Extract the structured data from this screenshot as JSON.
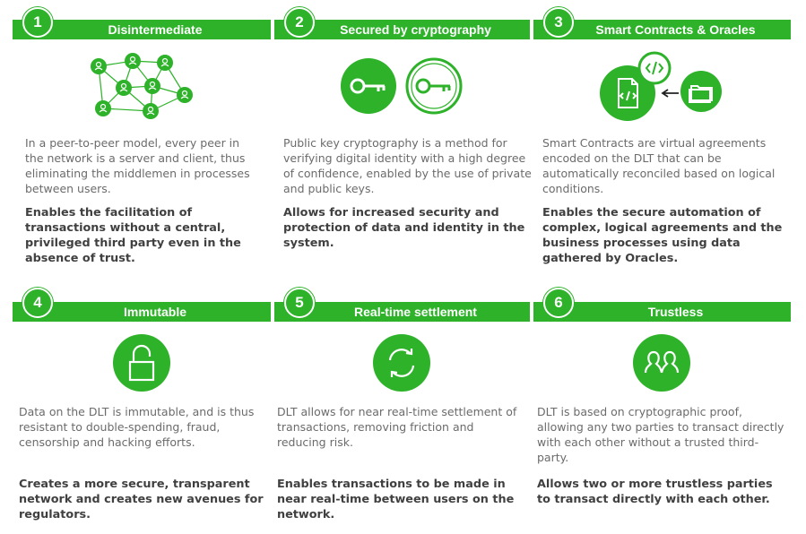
{
  "cards": [
    {
      "number": "1",
      "title": "Disintermediate",
      "description": "In a peer-to-peer model, every peer in the network is a server and client, thus eliminating the middlemen in processes between users.",
      "highlight": "Enables the facilitation of transactions without a central, privileged third party even in the absence of trust.",
      "icon": "network-nodes-icon"
    },
    {
      "number": "2",
      "title": "Secured by cryptography",
      "description": "Public key cryptography is a method for verifying digital identity with a high degree of confidence, enabled by the use of private and public keys.",
      "highlight": "Allows for increased security and protection of data and identity in the system.",
      "icon": "key-icon"
    },
    {
      "number": "3",
      "title": "Smart Contracts & Oracles",
      "description": "Smart Contracts are virtual agreements encoded on the DLT that can be automatically reconciled based on logical conditions.",
      "highlight": "Enables the secure automation of complex, logical agreements and the business processes using data gathered by Oracles.",
      "icon": "smart-contract-icon"
    },
    {
      "number": "4",
      "title": "Immutable",
      "description": "Data on the DLT is immutable, and is thus resistant to double-spending, fraud, censorship and hacking efforts.",
      "highlight": "Creates a more secure, transparent network and creates new avenues for regulators.",
      "icon": "lock-icon"
    },
    {
      "number": "5",
      "title": "Real-time settlement",
      "description": "DLT allows for near real-time settlement of transactions, removing friction and reducing risk.",
      "highlight": "Enables transactions to be made in near real-time between users on the network.",
      "icon": "refresh-icon"
    },
    {
      "number": "6",
      "title": "Trustless",
      "description": "DLT is based on cryptographic proof, allowing any two parties to transact directly with each other without a trusted third-party.",
      "highlight": "Allows two or more trustless parties to transact directly with each other.",
      "icon": "two-people-icon"
    }
  ],
  "colors": {
    "accent": "#2db229",
    "body_text": "#6b6b6b",
    "bold_text": "#404040"
  }
}
